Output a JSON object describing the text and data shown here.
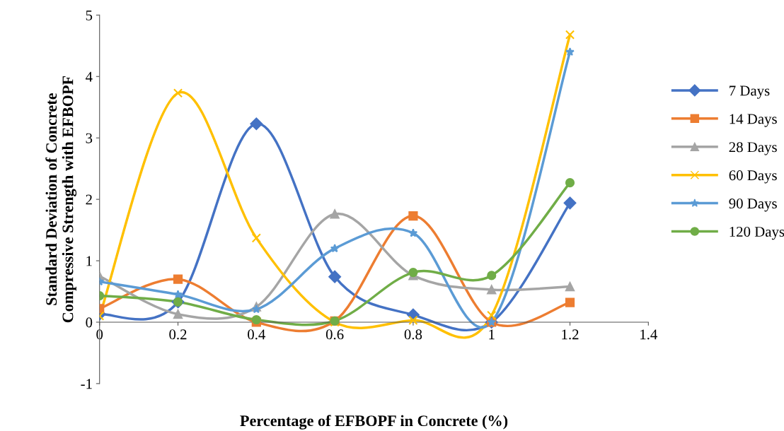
{
  "chart_data": {
    "type": "line",
    "xlabel": "Percentage of EFBOPF in Concrete (%)",
    "ylabel": "Standard Deviation of Concrete\nCompressive Strength with EFBOPF",
    "x": [
      0,
      0.2,
      0.4,
      0.6,
      0.8,
      1,
      1.2
    ],
    "series": [
      {
        "name": "7 Days",
        "color": "#4472c4",
        "marker": "diamond",
        "values": [
          0.13,
          0.33,
          3.23,
          0.74,
          0.12,
          0.0,
          1.94
        ]
      },
      {
        "name": "14 Days",
        "color": "#ed7d31",
        "marker": "square",
        "values": [
          0.22,
          0.7,
          0.0,
          0.02,
          1.73,
          0.0,
          0.32
        ]
      },
      {
        "name": "28 Days",
        "color": "#a5a5a5",
        "marker": "triangle",
        "values": [
          0.75,
          0.13,
          0.25,
          1.76,
          0.76,
          0.53,
          0.58
        ]
      },
      {
        "name": "60 Days",
        "color": "#ffc000",
        "marker": "cross",
        "values": [
          0.1,
          3.73,
          1.37,
          0.0,
          0.03,
          0.11,
          4.68
        ]
      },
      {
        "name": "90 Days",
        "color": "#5b9bd5",
        "marker": "star",
        "values": [
          0.66,
          0.45,
          0.21,
          1.2,
          1.45,
          0.0,
          4.4
        ]
      },
      {
        "name": "120 Days",
        "color": "#70ad47",
        "marker": "circle",
        "values": [
          0.43,
          0.33,
          0.04,
          0.02,
          0.81,
          0.76,
          2.27
        ]
      }
    ],
    "xlim": [
      0,
      1.4
    ],
    "xticks": [
      0,
      0.2,
      0.4,
      0.6,
      0.8,
      1,
      1.2,
      1.4
    ],
    "ylim": [
      -1,
      5
    ],
    "yticks": [
      -1,
      0,
      1,
      2,
      3,
      4,
      5
    ],
    "grid": false,
    "legend": "right",
    "line_style": "solid"
  }
}
